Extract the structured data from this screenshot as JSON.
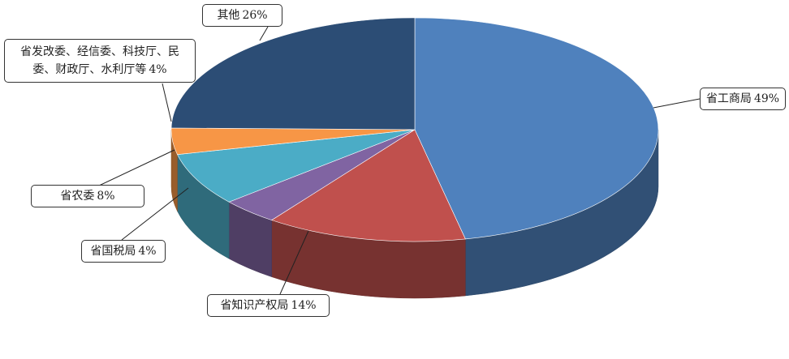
{
  "chart_data": {
    "type": "pie",
    "categories": [
      "省工商局",
      "省知识产权局",
      "省国税局",
      "省农委",
      "省发改委、经信委、科技厅、民委、财政厅、水利厅等",
      "其他"
    ],
    "values": [
      49,
      14,
      4,
      8,
      4,
      26
    ],
    "value_labels": [
      "49%",
      "14%",
      "4%",
      "8%",
      "4%",
      "26%"
    ],
    "colors": [
      "#4f81bd",
      "#c0504d",
      "#8064a2",
      "#4bacc6",
      "#f79646",
      "#2c4d75"
    ]
  }
}
